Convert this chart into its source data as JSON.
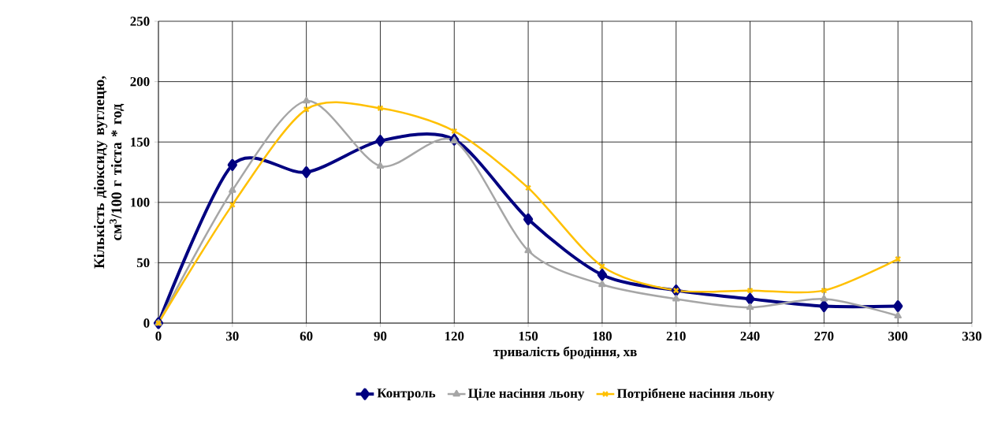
{
  "chart_data": {
    "type": "line",
    "xlabel": "тривалість  бродіння, хв",
    "ylabel": "Кількість діоксиду вуглецю, см$^{3}$/100 г тіста * год",
    "x": [
      0,
      30,
      60,
      90,
      120,
      150,
      180,
      210,
      240,
      270,
      300
    ],
    "series": [
      {
        "name": "Контроль",
        "color": "#000080",
        "marker": "diamond",
        "values": [
          0,
          131,
          125,
          151,
          152,
          86,
          40,
          27,
          20,
          14,
          14
        ]
      },
      {
        "name": "Ціле насіння льону",
        "color": "#a6a6a6",
        "marker": "triangle",
        "values": [
          0,
          110,
          184,
          130,
          151,
          60,
          32,
          20,
          13,
          20,
          6
        ]
      },
      {
        "name": "Потрібнене насіння льону",
        "color": "#ffc000",
        "marker": "cross",
        "values": [
          0,
          98,
          177,
          178,
          159,
          112,
          47,
          27,
          27,
          27,
          53
        ]
      }
    ],
    "xlim": [
      0,
      330
    ],
    "xticks": [
      0,
      30,
      60,
      90,
      120,
      150,
      180,
      210,
      240,
      270,
      300,
      330
    ],
    "ylim": [
      0,
      250
    ],
    "yticks": [
      0,
      50,
      100,
      150,
      200,
      250
    ],
    "grid": true,
    "legend": "bottom",
    "line_style": "solid"
  }
}
